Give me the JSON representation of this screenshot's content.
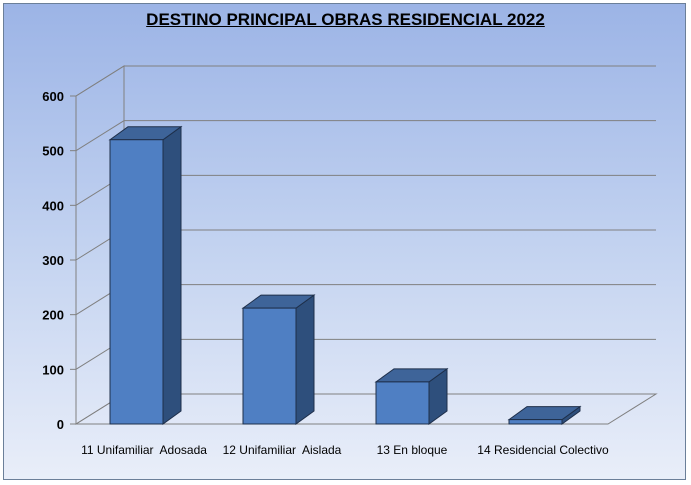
{
  "chart_data": {
    "type": "bar",
    "title": "DESTINO PRINCIPAL OBRAS  RESIDENCIAL 2022",
    "categories": [
      "11 Unifamiliar  Adosada",
      "12 Unifamiliar  Aislada",
      "13 En bloque",
      "14 Residencial Colectivo"
    ],
    "values": [
      520,
      212,
      77,
      8
    ],
    "ylim": [
      0,
      600
    ],
    "yticks": [
      0,
      100,
      200,
      300,
      400,
      500,
      600
    ],
    "grid": true,
    "legend": "none",
    "colors": {
      "bar_front": "#4f7fc3",
      "bar_side": "#2e4f7c",
      "bar_top": "#3e6499",
      "grid": "#808080"
    }
  }
}
